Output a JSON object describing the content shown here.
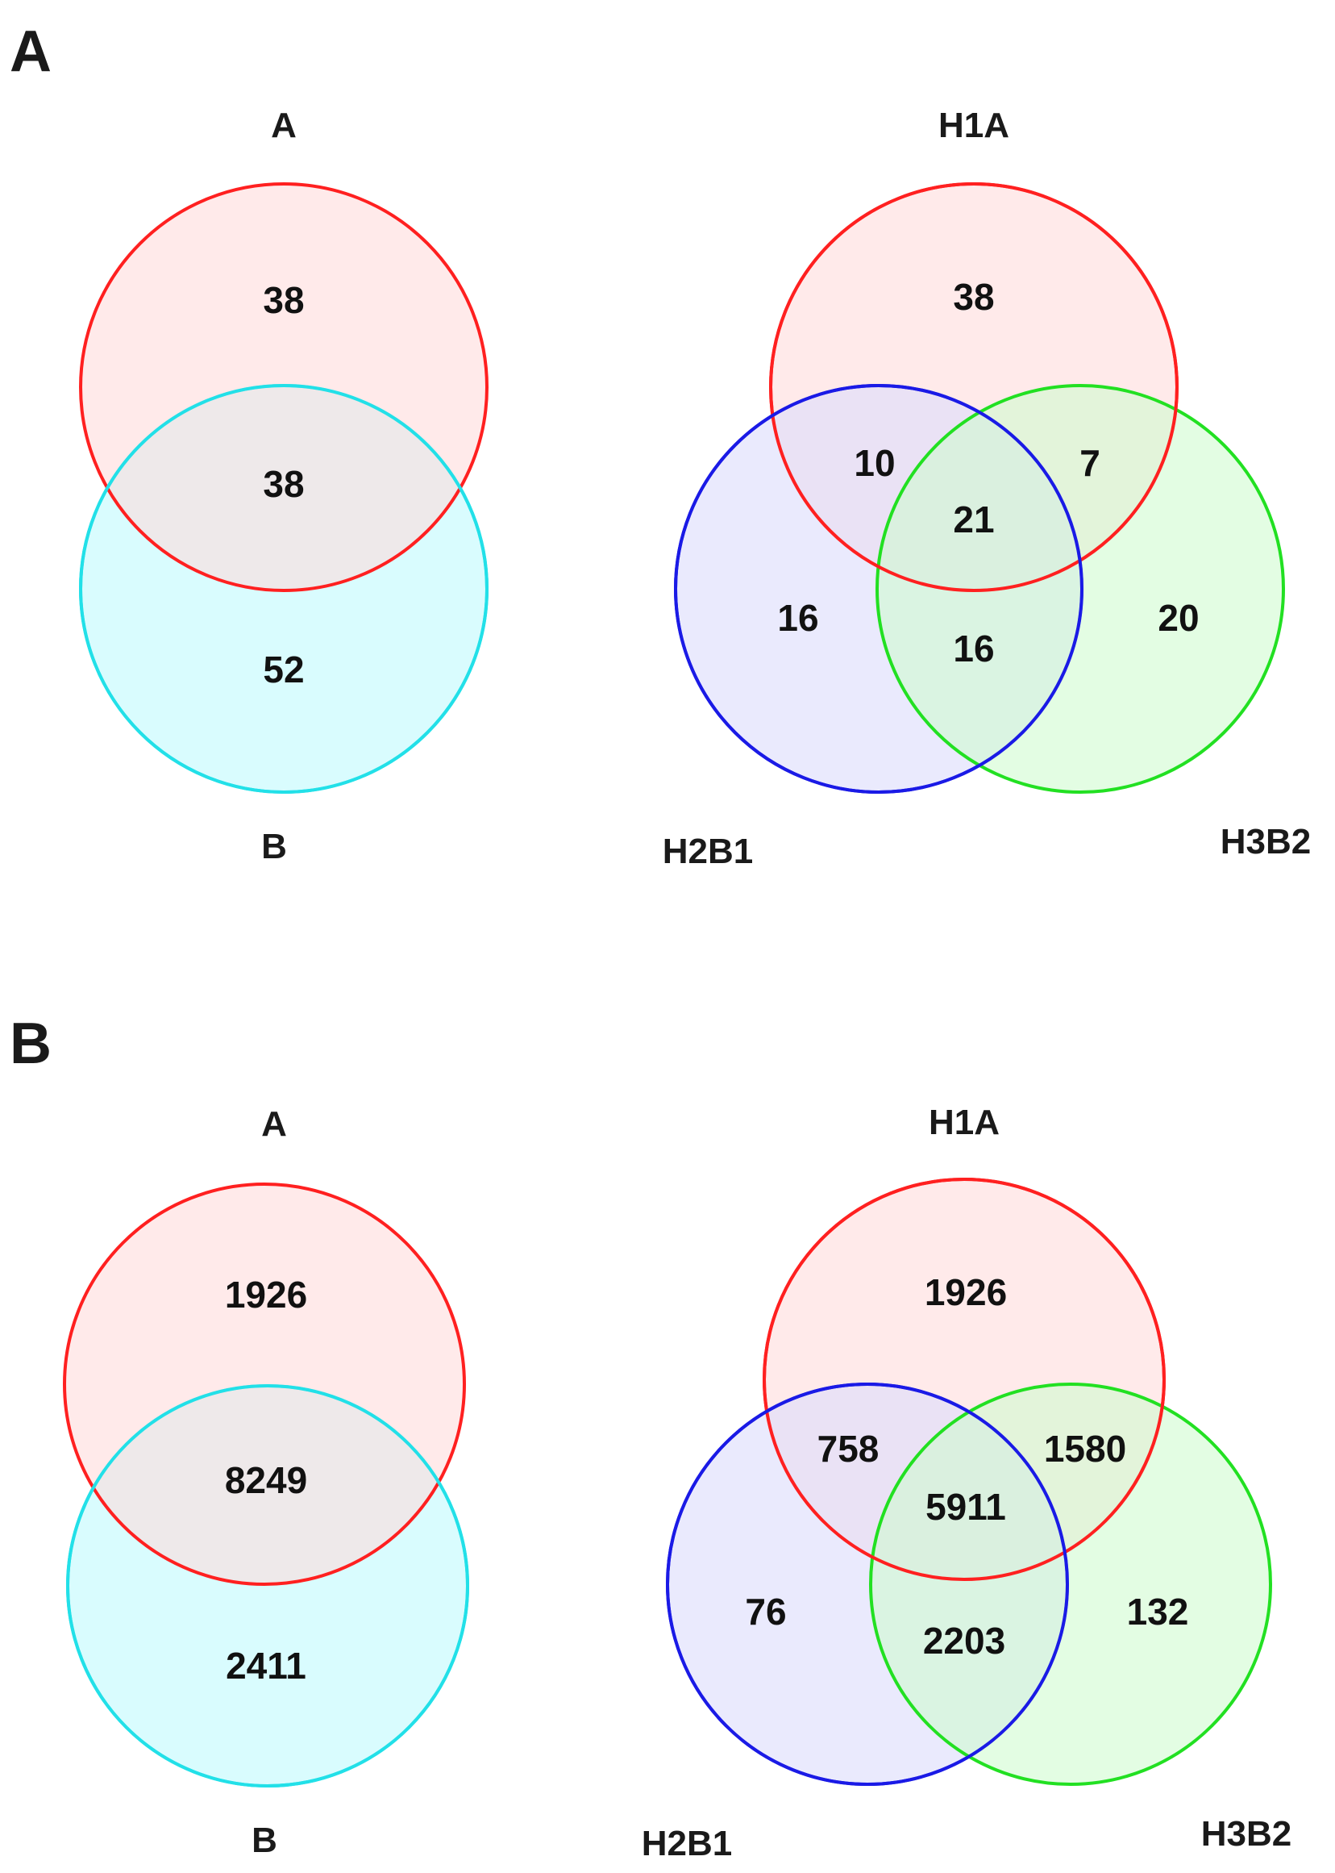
{
  "colors": {
    "red_stroke": "#ff2020",
    "red_fill": "#ffd9d9",
    "cyan_stroke": "#22e0e8",
    "cyan_fill": "#ccfbfd",
    "blue_stroke": "#1a1ae6",
    "blue_fill": "#dcdcfb",
    "green_stroke": "#22e022",
    "green_fill": "#ccfbcc"
  },
  "panels": [
    {
      "letter": "A",
      "two_way": {
        "labels": {
          "top": "A",
          "bottom": "B"
        },
        "counts": {
          "only_top": "38",
          "overlap": "38",
          "only_bottom": "52"
        }
      },
      "three_way": {
        "labels": {
          "top": "H1A",
          "left": "H2B1",
          "right": "H3B2"
        },
        "counts": {
          "h1a_only": "38",
          "h1a_h2b1": "10",
          "h1a_h3b2": "7",
          "all_three": "21",
          "h2b1_only": "16",
          "h2b1_h3b2": "16",
          "h3b2_only": "20"
        }
      }
    },
    {
      "letter": "B",
      "two_way": {
        "labels": {
          "top": "A",
          "bottom": "B"
        },
        "counts": {
          "only_top": "1926",
          "overlap": "8249",
          "only_bottom": "2411"
        }
      },
      "three_way": {
        "labels": {
          "top": "H1A",
          "left": "H2B1",
          "right": "H3B2"
        },
        "counts": {
          "h1a_only": "1926",
          "h1a_h2b1": "758",
          "h1a_h3b2": "1580",
          "all_three": "5911",
          "h2b1_only": "76",
          "h2b1_h3b2": "2203",
          "h3b2_only": "132"
        }
      }
    }
  ]
}
